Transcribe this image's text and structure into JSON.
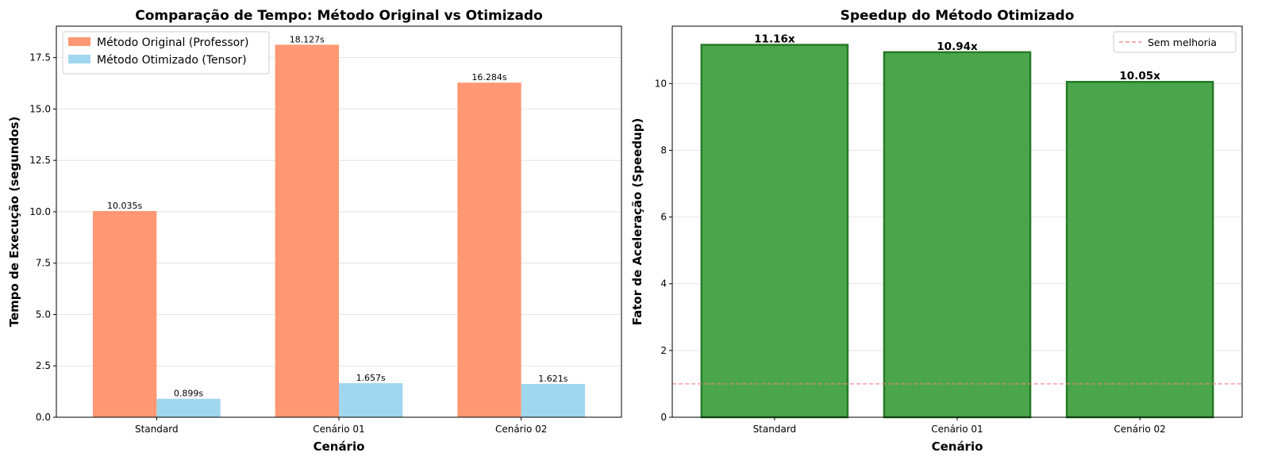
{
  "chart_data": [
    {
      "type": "bar",
      "title": "Comparação de Tempo: Método Original vs Otimizado",
      "xlabel": "Cenário",
      "ylabel": "Tempo de Execução (segundos)",
      "categories": [
        "Standard",
        "Cenário 01",
        "Cenário 02"
      ],
      "series": [
        {
          "name": "Método Original (Professor)",
          "values": [
            10.035,
            18.127,
            16.284
          ],
          "labels": [
            "10.035s",
            "18.127s",
            "16.284s"
          ],
          "color": "#ff9873"
        },
        {
          "name": "Método Otimizado (Tensor)",
          "values": [
            0.899,
            1.657,
            1.621
          ],
          "labels": [
            "0.899s",
            "1.657s",
            "1.621s"
          ],
          "color": "#a1d6ef"
        }
      ],
      "ylim": [
        0,
        19.03
      ],
      "yticks": [
        0.0,
        2.5,
        5.0,
        7.5,
        10.0,
        12.5,
        15.0,
        17.5
      ],
      "ytick_labels": [
        "0.0",
        "2.5",
        "5.0",
        "7.5",
        "10.0",
        "12.5",
        "15.0",
        "17.5"
      ],
      "grid": "y",
      "legend_position": "top-left"
    },
    {
      "type": "bar",
      "title": "Speedup do Método Otimizado",
      "xlabel": "Cenário",
      "ylabel": "Fator de Aceleração (Speedup)",
      "categories": [
        "Standard",
        "Cenário 01",
        "Cenário 02"
      ],
      "values": [
        11.16,
        10.94,
        10.05
      ],
      "labels": [
        "11.16x",
        "10.94x",
        "10.05x"
      ],
      "color": "#4ba64b",
      "edge_color": "#267a26",
      "ylim": [
        0,
        11.72
      ],
      "yticks": [
        0,
        2,
        4,
        6,
        8,
        10
      ],
      "ytick_labels": [
        "0",
        "2",
        "4",
        "6",
        "8",
        "10"
      ],
      "grid": "y",
      "reference_line": {
        "value": 1,
        "name": "Sem melhoria",
        "color": "#f08080"
      },
      "legend_position": "top-right"
    }
  ]
}
